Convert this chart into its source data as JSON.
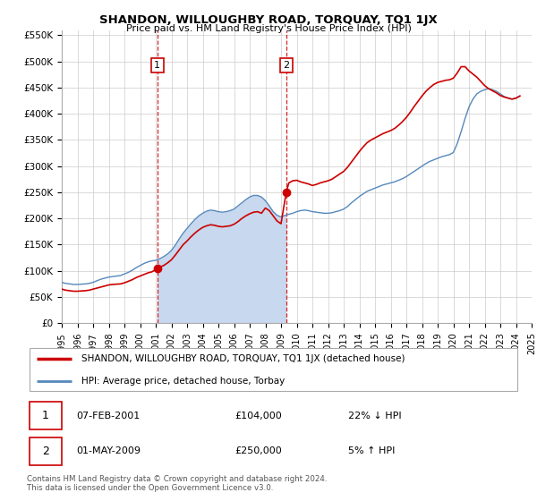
{
  "title": "SHANDON, WILLOUGHBY ROAD, TORQUAY, TQ1 1JX",
  "subtitle": "Price paid vs. HM Land Registry's House Price Index (HPI)",
  "legend_label_red": "SHANDON, WILLOUGHBY ROAD, TORQUAY, TQ1 1JX (detached house)",
  "legend_label_blue": "HPI: Average price, detached house, Torbay",
  "annotation1_date": "07-FEB-2001",
  "annotation1_price": "£104,000",
  "annotation1_hpi": "22% ↓ HPI",
  "annotation2_date": "01-MAY-2009",
  "annotation2_price": "£250,000",
  "annotation2_hpi": "5% ↑ HPI",
  "footer": "Contains HM Land Registry data © Crown copyright and database right 2024.\nThis data is licensed under the Open Government Licence v3.0.",
  "color_red": "#cc0000",
  "color_blue": "#5588bb",
  "color_fill": "#c8d8ee",
  "ylim": [
    0,
    560000
  ],
  "yticks": [
    0,
    50000,
    100000,
    150000,
    200000,
    250000,
    300000,
    350000,
    400000,
    450000,
    500000,
    550000
  ],
  "ytick_labels": [
    "£0",
    "£50K",
    "£100K",
    "£150K",
    "£200K",
    "£250K",
    "£300K",
    "£350K",
    "£400K",
    "£450K",
    "£500K",
    "£550K"
  ],
  "hpi_years": [
    1995.0,
    1995.25,
    1995.5,
    1995.75,
    1996.0,
    1996.25,
    1996.5,
    1996.75,
    1997.0,
    1997.25,
    1997.5,
    1997.75,
    1998.0,
    1998.25,
    1998.5,
    1998.75,
    1999.0,
    1999.25,
    1999.5,
    1999.75,
    2000.0,
    2000.25,
    2000.5,
    2000.75,
    2001.0,
    2001.25,
    2001.5,
    2001.75,
    2002.0,
    2002.25,
    2002.5,
    2002.75,
    2003.0,
    2003.25,
    2003.5,
    2003.75,
    2004.0,
    2004.25,
    2004.5,
    2004.75,
    2005.0,
    2005.25,
    2005.5,
    2005.75,
    2006.0,
    2006.25,
    2006.5,
    2006.75,
    2007.0,
    2007.25,
    2007.5,
    2007.75,
    2008.0,
    2008.25,
    2008.5,
    2008.75,
    2009.0,
    2009.25,
    2009.5,
    2009.75,
    2010.0,
    2010.25,
    2010.5,
    2010.75,
    2011.0,
    2011.25,
    2011.5,
    2011.75,
    2012.0,
    2012.25,
    2012.5,
    2012.75,
    2013.0,
    2013.25,
    2013.5,
    2013.75,
    2014.0,
    2014.25,
    2014.5,
    2014.75,
    2015.0,
    2015.25,
    2015.5,
    2015.75,
    2016.0,
    2016.25,
    2016.5,
    2016.75,
    2017.0,
    2017.25,
    2017.5,
    2017.75,
    2018.0,
    2018.25,
    2018.5,
    2018.75,
    2019.0,
    2019.25,
    2019.5,
    2019.75,
    2020.0,
    2020.25,
    2020.5,
    2020.75,
    2021.0,
    2021.25,
    2021.5,
    2021.75,
    2022.0,
    2022.25,
    2022.5,
    2022.75,
    2023.0,
    2023.25,
    2023.5,
    2023.75,
    2024.0,
    2024.25
  ],
  "hpi_values": [
    78000,
    76000,
    75000,
    74000,
    74000,
    74500,
    75000,
    76000,
    78000,
    81000,
    84000,
    86000,
    88000,
    89000,
    90000,
    91000,
    94000,
    97000,
    101000,
    106000,
    110000,
    114000,
    117000,
    119000,
    120000,
    123000,
    127000,
    132000,
    139000,
    149000,
    161000,
    172000,
    181000,
    190000,
    198000,
    205000,
    210000,
    214000,
    216000,
    215000,
    213000,
    212000,
    213000,
    215000,
    218000,
    224000,
    230000,
    236000,
    241000,
    244000,
    244000,
    241000,
    234000,
    224000,
    213000,
    206000,
    203000,
    206000,
    208000,
    210000,
    213000,
    215000,
    216000,
    215000,
    213000,
    212000,
    211000,
    210000,
    210000,
    211000,
    213000,
    215000,
    218000,
    223000,
    230000,
    236000,
    242000,
    247000,
    252000,
    255000,
    258000,
    261000,
    264000,
    266000,
    268000,
    270000,
    273000,
    276000,
    280000,
    285000,
    290000,
    295000,
    300000,
    305000,
    309000,
    312000,
    315000,
    318000,
    320000,
    322000,
    326000,
    343000,
    366000,
    391000,
    413000,
    428000,
    438000,
    443000,
    446000,
    448000,
    446000,
    443000,
    438000,
    433000,
    430000,
    428000,
    430000,
    434000
  ],
  "red_years": [
    1995.0,
    1995.25,
    1995.5,
    1995.75,
    1996.0,
    1996.25,
    1996.5,
    1996.75,
    1997.0,
    1997.25,
    1997.5,
    1997.75,
    1998.0,
    1998.25,
    1998.5,
    1998.75,
    1999.0,
    1999.25,
    1999.5,
    1999.75,
    2000.0,
    2000.25,
    2000.5,
    2000.75,
    2001.1,
    2001.25,
    2001.5,
    2001.75,
    2002.0,
    2002.25,
    2002.5,
    2002.75,
    2003.0,
    2003.25,
    2003.5,
    2003.75,
    2004.0,
    2004.25,
    2004.5,
    2004.75,
    2005.0,
    2005.25,
    2005.5,
    2005.75,
    2006.0,
    2006.25,
    2006.5,
    2006.75,
    2007.0,
    2007.25,
    2007.5,
    2007.75,
    2008.0,
    2008.25,
    2008.5,
    2008.75,
    2009.0,
    2009.33,
    2009.5,
    2009.75,
    2010.0,
    2010.25,
    2010.5,
    2010.75,
    2011.0,
    2011.25,
    2011.5,
    2011.75,
    2012.0,
    2012.25,
    2012.5,
    2012.75,
    2013.0,
    2013.25,
    2013.5,
    2013.75,
    2014.0,
    2014.25,
    2014.5,
    2014.75,
    2015.0,
    2015.25,
    2015.5,
    2015.75,
    2016.0,
    2016.25,
    2016.5,
    2016.75,
    2017.0,
    2017.25,
    2017.5,
    2017.75,
    2018.0,
    2018.25,
    2018.5,
    2018.75,
    2019.0,
    2019.25,
    2019.5,
    2019.75,
    2020.0,
    2020.25,
    2020.5,
    2020.75,
    2021.0,
    2021.25,
    2021.5,
    2021.75,
    2022.0,
    2022.25,
    2022.5,
    2022.75,
    2023.0,
    2023.25,
    2023.5,
    2023.75,
    2024.0,
    2024.25
  ],
  "red_values": [
    65000,
    63000,
    62000,
    61000,
    61000,
    61500,
    62000,
    63000,
    65000,
    67000,
    69000,
    71000,
    73000,
    74000,
    74500,
    75000,
    77000,
    80000,
    83000,
    87000,
    90000,
    93000,
    96000,
    98000,
    104000,
    107000,
    110000,
    115000,
    121000,
    130000,
    140000,
    150000,
    157000,
    165000,
    172000,
    178000,
    183000,
    186000,
    188000,
    187000,
    185000,
    184000,
    185000,
    186000,
    189000,
    194000,
    200000,
    205000,
    209000,
    212000,
    213000,
    210000,
    220000,
    215000,
    205000,
    195000,
    190000,
    250000,
    268000,
    272000,
    273000,
    270000,
    268000,
    266000,
    263000,
    265000,
    268000,
    270000,
    272000,
    275000,
    280000,
    285000,
    290000,
    298000,
    308000,
    318000,
    328000,
    337000,
    345000,
    350000,
    354000,
    358000,
    362000,
    365000,
    368000,
    372000,
    378000,
    385000,
    393000,
    403000,
    414000,
    424000,
    434000,
    443000,
    450000,
    456000,
    460000,
    462000,
    464000,
    465000,
    468000,
    478000,
    490000,
    490000,
    482000,
    476000,
    470000,
    462000,
    454000,
    448000,
    444000,
    440000,
    435000,
    432000,
    430000,
    428000,
    430000,
    434000
  ],
  "sale1_x": 2001.1,
  "sale1_y": 104000,
  "sale2_x": 2009.33,
  "sale2_y": 250000,
  "xmin": 1995,
  "xmax": 2025,
  "xticks": [
    1995,
    1996,
    1997,
    1998,
    1999,
    2000,
    2001,
    2002,
    2003,
    2004,
    2005,
    2006,
    2007,
    2008,
    2009,
    2010,
    2011,
    2012,
    2013,
    2014,
    2015,
    2016,
    2017,
    2018,
    2019,
    2020,
    2021,
    2022,
    2023,
    2024,
    2025
  ]
}
